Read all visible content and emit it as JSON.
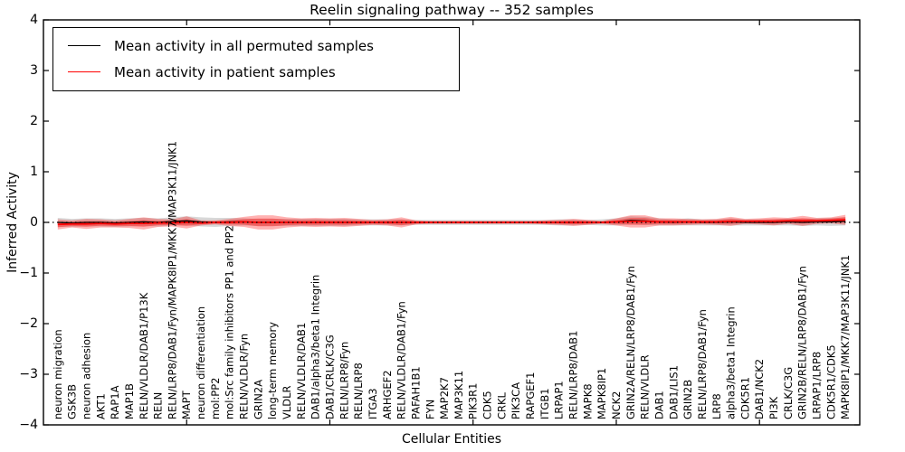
{
  "title": "Reelin signaling pathway -- 352 samples",
  "legend": {
    "items": [
      {
        "label": "Mean activity in all permuted samples",
        "color": "#000000"
      },
      {
        "label": "Mean activity in patient samples",
        "color": "#ff0000"
      }
    ]
  },
  "chart_data": {
    "type": "line",
    "title": "Reelin signaling pathway -- 352 samples",
    "xlabel": "Cellular Entities",
    "ylabel": "Inferred Activity",
    "ylim": [
      -4,
      4
    ],
    "yticks": [
      {
        "value": 4,
        "label": "4"
      },
      {
        "value": 3,
        "label": "3"
      },
      {
        "value": 2,
        "label": "2"
      },
      {
        "value": 1,
        "label": "1"
      },
      {
        "value": 0,
        "label": "0"
      },
      {
        "value": -1,
        "label": "−1"
      },
      {
        "value": -2,
        "label": "−2"
      },
      {
        "value": -3,
        "label": "−3"
      },
      {
        "value": -4,
        "label": "−4"
      }
    ],
    "xtick_positions": [
      10,
      20,
      30,
      40,
      50
    ],
    "grid": false,
    "legend_position": "upper left",
    "zero_line": {
      "y": 0,
      "style": "dotted",
      "color": "#000000"
    },
    "categories": [
      "neuron migration",
      "GSK3B",
      "neuron adhesion",
      "AKT1",
      "RAP1A",
      "MAP1B",
      "RELN/VLDLR/DAB1/P13K",
      "RELN",
      "RELN/LRP8/DAB1/Fyn/MAPK8IP1/MKK7/MAP3K11/JNK1",
      "MAPT",
      "neuron differentiation",
      "mol:PP2",
      "mol:Src family inhibitors PP1 and PP2",
      "RELN/VLDLR/Fyn",
      "GRIN2A",
      "long-term memory",
      "VLDLR",
      "RELN/VLDLR/DAB1",
      "DAB1/alpha3/beta1 Integrin",
      "DAB1/CRLK/C3G",
      "RELN/LRP8/Fyn",
      "RELN/LRP8",
      "ITGA3",
      "ARHGEF2",
      "RELN/VLDLR/DAB1/Fyn",
      "PAFAH1B1",
      "FYN",
      "MAP2K7",
      "MAP3K11",
      "PIK3R1",
      "CDK5",
      "CRKL",
      "PIK3CA",
      "RAPGEF1",
      "ITGB1",
      "LRPAP1",
      "RELN/LRP8/DAB1",
      "MAPK8",
      "MAPK8IP1",
      "NCK2",
      "GRIN2A/RELN/LRP8/DAB1/Fyn",
      "RELN/VLDLR",
      "DAB1",
      "DAB1/LIS1",
      "GRIN2B",
      "RELN/LRP8/DAB1/Fyn",
      "LRP8",
      "alpha3/beta1 Integrin",
      "CDK5R1",
      "DAB1/NCK2",
      "PI3K",
      "CRLK/C3G",
      "GRIN2B/RELN/LRP8/DAB1/Fyn",
      "LRPAP1/LRP8",
      "CDK5R1/CDK5",
      "MAPK8IP1/MKK7/MAP3K11/JNK1"
    ],
    "series": [
      {
        "name": "Mean activity in all permuted samples",
        "color": "#000000",
        "style": "solid",
        "values": [
          0.0,
          -0.01,
          0.0,
          0.0,
          -0.01,
          0.0,
          0.01,
          0.0,
          0.02,
          0.03,
          0.01,
          0.0,
          0.01,
          0.01,
          0.0,
          0.0,
          0.0,
          0.0,
          0.0,
          0.0,
          0.0,
          0.0,
          0.0,
          0.0,
          0.0,
          0.0,
          0.0,
          0.0,
          0.0,
          0.0,
          0.0,
          0.0,
          0.0,
          0.0,
          0.0,
          0.0,
          0.0,
          0.0,
          0.0,
          0.01,
          0.04,
          0.03,
          0.01,
          0.0,
          0.01,
          0.0,
          0.0,
          0.01,
          0.0,
          0.0,
          0.0,
          0.01,
          0.0,
          0.01,
          0.01,
          0.02
        ]
      },
      {
        "name": "Mean activity in patient samples",
        "color": "#ff0000",
        "style": "solid",
        "values": [
          -0.04,
          -0.03,
          -0.03,
          -0.02,
          -0.03,
          -0.02,
          -0.02,
          -0.01,
          -0.01,
          0.0,
          -0.01,
          0.0,
          0.0,
          0.01,
          0.0,
          0.0,
          0.0,
          0.0,
          0.0,
          0.0,
          0.0,
          0.0,
          0.0,
          0.0,
          0.0,
          0.0,
          0.0,
          0.0,
          0.0,
          0.0,
          0.0,
          0.0,
          0.0,
          0.0,
          0.0,
          0.0,
          0.0,
          0.0,
          0.0,
          0.01,
          0.02,
          0.02,
          0.01,
          0.01,
          0.01,
          0.01,
          0.01,
          0.02,
          0.02,
          0.02,
          0.02,
          0.03,
          0.03,
          0.03,
          0.04,
          0.05
        ]
      }
    ],
    "bands": [
      {
        "name": "permuted-samples-std",
        "color": "#999999",
        "opacity": 0.38,
        "center_series": 0,
        "has_core": false,
        "half_widths": [
          0.09,
          0.08,
          0.08,
          0.08,
          0.08,
          0.08,
          0.08,
          0.08,
          0.08,
          0.09,
          0.09,
          0.09,
          0.08,
          0.07,
          0.07,
          0.07,
          0.07,
          0.07,
          0.07,
          0.07,
          0.07,
          0.06,
          0.06,
          0.06,
          0.06,
          0.05,
          0.05,
          0.05,
          0.05,
          0.05,
          0.05,
          0.05,
          0.05,
          0.05,
          0.05,
          0.06,
          0.06,
          0.05,
          0.06,
          0.07,
          0.08,
          0.08,
          0.07,
          0.06,
          0.07,
          0.06,
          0.06,
          0.07,
          0.06,
          0.06,
          0.06,
          0.07,
          0.07,
          0.07,
          0.08,
          0.08
        ]
      },
      {
        "name": "patient-samples-std",
        "color": "#ff0000",
        "opacity": 0.3,
        "center_series": 1,
        "has_core": true,
        "half_widths": [
          0.1,
          0.07,
          0.1,
          0.08,
          0.07,
          0.09,
          0.12,
          0.08,
          0.07,
          0.12,
          0.05,
          0.04,
          0.07,
          0.1,
          0.14,
          0.14,
          0.1,
          0.08,
          0.09,
          0.08,
          0.09,
          0.07,
          0.05,
          0.06,
          0.1,
          0.04,
          0.03,
          0.03,
          0.03,
          0.03,
          0.03,
          0.03,
          0.03,
          0.03,
          0.04,
          0.05,
          0.07,
          0.05,
          0.03,
          0.07,
          0.12,
          0.12,
          0.07,
          0.07,
          0.06,
          0.05,
          0.06,
          0.09,
          0.05,
          0.06,
          0.08,
          0.06,
          0.1,
          0.06,
          0.06,
          0.1
        ]
      }
    ]
  }
}
